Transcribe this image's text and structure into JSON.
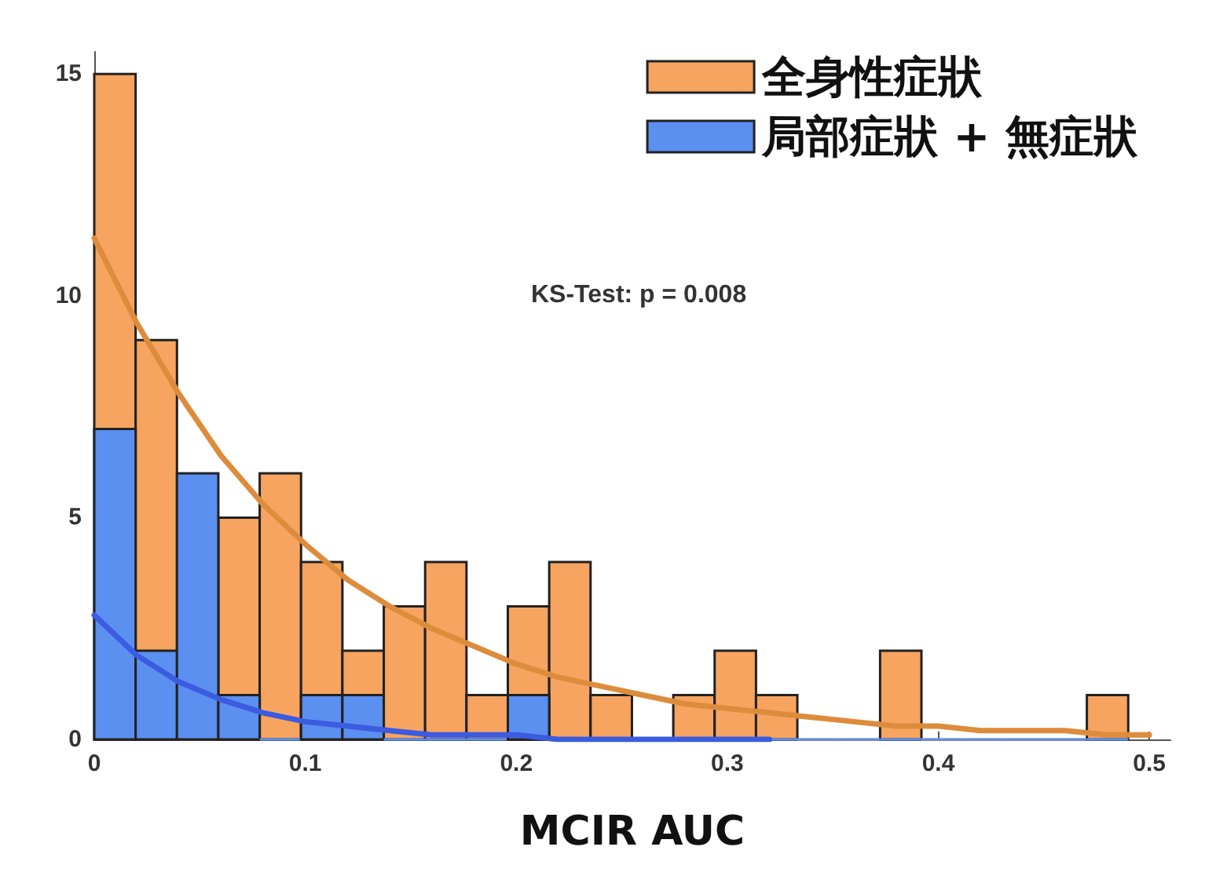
{
  "chart_data": {
    "type": "histogram",
    "xlabel": "MCIR AUC",
    "bins": [
      0,
      0.0196,
      0.0392,
      0.0588,
      0.0784,
      0.098,
      0.1176,
      0.1372,
      0.1568,
      0.1764,
      0.196,
      0.2156,
      0.2352,
      0.2548,
      0.2744,
      0.294,
      0.3136,
      0.3332,
      0.3528,
      0.3724,
      0.392,
      0.4116,
      0.4312,
      0.4508,
      0.4704,
      0.49
    ],
    "series": [
      {
        "name": "全身性症狀",
        "color": "#f6a460",
        "values": [
          15,
          9,
          null,
          5,
          6,
          4,
          2,
          3,
          4,
          1,
          3,
          4,
          1,
          0,
          1,
          2,
          1,
          0,
          0,
          2,
          0,
          0,
          0,
          0,
          1
        ]
      },
      {
        "name": "局部症狀 + 無症狀",
        "color": "#5b8ff0",
        "values": [
          7,
          2,
          6,
          1,
          0,
          1,
          1,
          0,
          0,
          0,
          1,
          0,
          0,
          0,
          0,
          0,
          0,
          0,
          0,
          0,
          0,
          0,
          0,
          0,
          0
        ]
      },
      {
        "type": "line",
        "color": "#dd8c3c",
        "x": [
          0,
          0.02,
          0.04,
          0.06,
          0.08,
          0.1,
          0.12,
          0.14,
          0.16,
          0.18,
          0.2,
          0.22,
          0.24,
          0.26,
          0.28,
          0.3,
          0.32,
          0.34,
          0.36,
          0.38,
          0.4,
          0.42,
          0.44,
          0.46,
          0.48,
          0.5
        ],
        "values": [
          11.3,
          9.4,
          7.8,
          6.4,
          5.3,
          4.4,
          3.6,
          3.0,
          2.5,
          2.1,
          1.7,
          1.4,
          1.2,
          1.0,
          0.8,
          0.7,
          0.6,
          0.5,
          0.4,
          0.3,
          0.3,
          0.2,
          0.2,
          0.2,
          0.1,
          0.1
        ]
      },
      {
        "type": "line",
        "color": "#3b5be0",
        "x": [
          0,
          0.02,
          0.04,
          0.06,
          0.08,
          0.1,
          0.12,
          0.14,
          0.16,
          0.18,
          0.2,
          0.22,
          0.24,
          0.26,
          0.28,
          0.3,
          0.32
        ],
        "values": [
          2.8,
          1.9,
          1.3,
          0.9,
          0.6,
          0.4,
          0.3,
          0.2,
          0.1,
          0.1,
          0.1,
          0,
          0,
          0,
          0,
          0,
          0
        ]
      }
    ],
    "xlim": [
      0,
      0.51
    ],
    "xticks": [
      0,
      0.1,
      0.2,
      0.3,
      0.4,
      0.5
    ],
    "ylim": [
      0,
      15.5
    ],
    "yticks": [
      0,
      5,
      10,
      15
    ],
    "annotations": [
      "KS-Test: p = 0.008"
    ],
    "legend": "top right",
    "grid": false,
    "marker": "none"
  }
}
